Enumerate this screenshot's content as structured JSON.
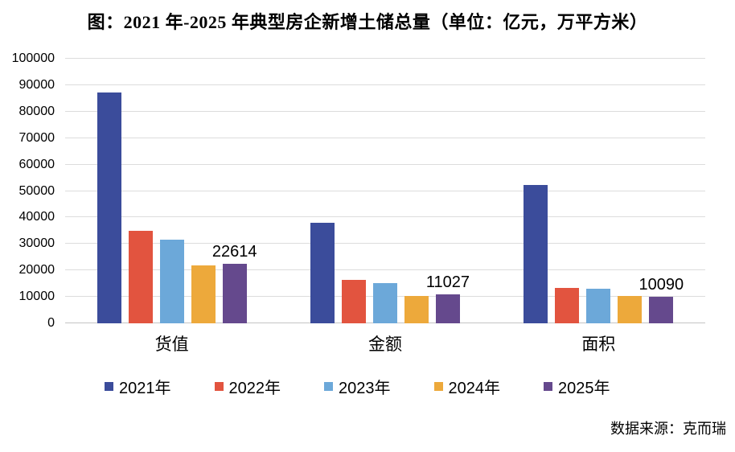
{
  "title": "图：2021 年-2025 年典型房企新增土储总量（单位：亿元，万平方米）",
  "source": "数据来源：克而瑞",
  "colors": {
    "grid": "#DCDCDC",
    "axis": "#C4C4C4",
    "text": "#000000"
  },
  "chart_data": {
    "type": "bar",
    "title": "图：2021 年-2025 年典型房企新增土储总量（单位：亿元，万平方米）",
    "categories": [
      "货值",
      "金额",
      "面积"
    ],
    "series": [
      {
        "name": "2021年",
        "color": "#3B4C9B",
        "values": [
          87200,
          37900,
          52300
        ]
      },
      {
        "name": "2022年",
        "color": "#E2543F",
        "values": [
          34900,
          16300,
          13500
        ]
      },
      {
        "name": "2023年",
        "color": "#6CA8D9",
        "values": [
          31500,
          15200,
          13200
        ]
      },
      {
        "name": "2024年",
        "color": "#EDA93B",
        "values": [
          21900,
          10400,
          10400
        ]
      },
      {
        "name": "2025年",
        "color": "#65498D",
        "values": [
          22614,
          11027,
          10090
        ],
        "data_labels": [
          "22614",
          "11027",
          "10090"
        ]
      }
    ],
    "ylim": [
      0,
      100000
    ],
    "yticks": [
      0,
      10000,
      20000,
      30000,
      40000,
      50000,
      60000,
      70000,
      80000,
      90000,
      100000
    ],
    "grid": true,
    "legend_position": "bottom",
    "annotation": "数据来源：克而瑞"
  }
}
